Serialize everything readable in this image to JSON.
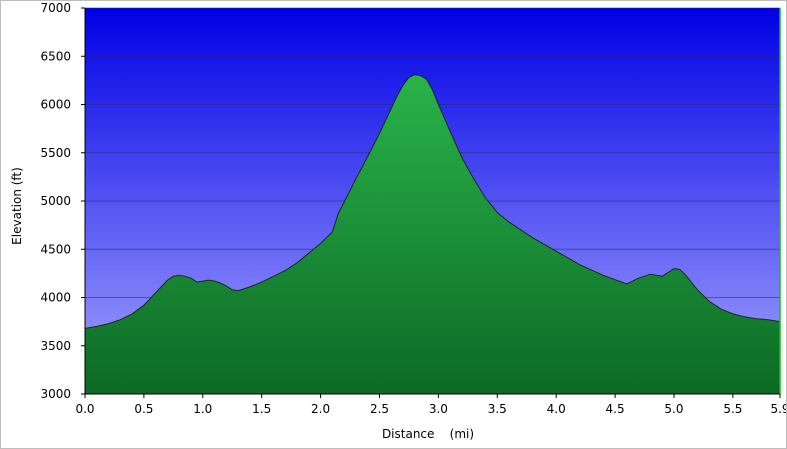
{
  "chart_data": {
    "type": "area",
    "title": "",
    "xlabel": "Distance    (mi)",
    "ylabel": "Elevation (ft)",
    "xlim": [
      0,
      5.9
    ],
    "ylim": [
      3000,
      7000
    ],
    "x_ticks": [
      0.0,
      0.5,
      1.0,
      1.5,
      2.0,
      2.5,
      3.0,
      3.5,
      4.0,
      4.5,
      5.0,
      5.5,
      5.9
    ],
    "x_tick_labels": [
      "0.0",
      "0.5",
      "1.0",
      "1.5",
      "2.0",
      "2.5",
      "3.0",
      "3.5",
      "4.0",
      "4.5",
      "5.0",
      "5.5",
      "5.9"
    ],
    "y_ticks": [
      3000,
      3500,
      4000,
      4500,
      5000,
      5500,
      6000,
      6500,
      7000
    ],
    "y_tick_labels": [
      "3000",
      "3500",
      "4000",
      "4500",
      "5000",
      "5500",
      "6000",
      "6500",
      "7000"
    ],
    "grid": true,
    "colors": {
      "sky_top": "#0000e6",
      "sky_bottom": "#a6a6ff",
      "fill_top": "#2ab34a",
      "fill_bottom": "#0d6a26",
      "line": "#1a2a1a",
      "grid": "#2a2a6a"
    },
    "series": [
      {
        "x": [
          0.0,
          0.1,
          0.2,
          0.3,
          0.4,
          0.5,
          0.6,
          0.7,
          0.75,
          0.8,
          0.85,
          0.9,
          0.95,
          1.0,
          1.05,
          1.1,
          1.15,
          1.2,
          1.25,
          1.3,
          1.4,
          1.5,
          1.6,
          1.7,
          1.8,
          1.9,
          2.0,
          2.1,
          2.15,
          2.2,
          2.3,
          2.4,
          2.5,
          2.6,
          2.65,
          2.7,
          2.75,
          2.8,
          2.85,
          2.9,
          2.95,
          3.0,
          3.1,
          3.2,
          3.3,
          3.4,
          3.5,
          3.6,
          3.8,
          4.0,
          4.2,
          4.4,
          4.6,
          4.7,
          4.8,
          4.9,
          4.95,
          5.0,
          5.05,
          5.1,
          5.2,
          5.3,
          5.4,
          5.5,
          5.6,
          5.7,
          5.8,
          5.9
        ],
        "y": [
          3680,
          3700,
          3730,
          3770,
          3830,
          3920,
          4050,
          4180,
          4220,
          4230,
          4220,
          4200,
          4160,
          4170,
          4180,
          4170,
          4150,
          4120,
          4080,
          4070,
          4110,
          4160,
          4220,
          4280,
          4360,
          4460,
          4560,
          4680,
          4870,
          4990,
          5230,
          5460,
          5700,
          5960,
          6090,
          6200,
          6280,
          6310,
          6300,
          6260,
          6150,
          6000,
          5720,
          5450,
          5230,
          5030,
          4880,
          4780,
          4620,
          4480,
          4340,
          4230,
          4140,
          4200,
          4240,
          4220,
          4260,
          4300,
          4290,
          4230,
          4080,
          3960,
          3880,
          3830,
          3800,
          3780,
          3770,
          3750
        ]
      }
    ]
  }
}
